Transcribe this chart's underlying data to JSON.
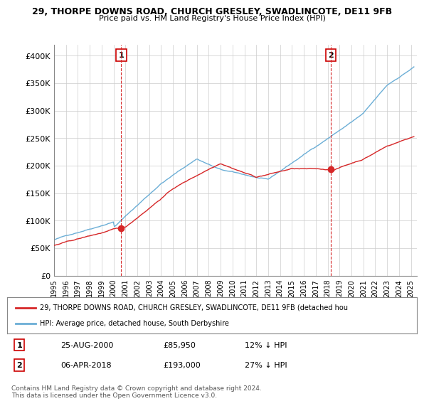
{
  "title": "29, THORPE DOWNS ROAD, CHURCH GRESLEY, SWADLINCOTE, DE11 9FB",
  "subtitle": "Price paid vs. HM Land Registry's House Price Index (HPI)",
  "xlabel": "",
  "ylabel": "",
  "ylim": [
    0,
    420000
  ],
  "yticks": [
    0,
    50000,
    100000,
    150000,
    200000,
    250000,
    300000,
    350000,
    400000
  ],
  "ytick_labels": [
    "£0",
    "£50K",
    "£100K",
    "£150K",
    "£200K",
    "£250K",
    "£300K",
    "£350K",
    "£400K"
  ],
  "xlim_start": 1995.0,
  "xlim_end": 2025.5,
  "marker1_x": 2000.65,
  "marker1_y": 85950,
  "marker1_label": "1",
  "marker1_date": "25-AUG-2000",
  "marker1_price": "£85,950",
  "marker1_hpi": "12% ↓ HPI",
  "marker2_x": 2018.27,
  "marker2_y": 193000,
  "marker2_label": "2",
  "marker2_date": "06-APR-2018",
  "marker2_price": "£193,000",
  "marker2_hpi": "27% ↓ HPI",
  "hpi_color": "#6baed6",
  "property_color": "#d62728",
  "dashed_line_color": "#d62728",
  "legend_property": "29, THORPE DOWNS ROAD, CHURCH GRESLEY, SWADLINCOTE, DE11 9FB (detached hou",
  "legend_hpi": "HPI: Average price, detached house, South Derbyshire",
  "footer": "Contains HM Land Registry data © Crown copyright and database right 2024.\nThis data is licensed under the Open Government Licence v3.0.",
  "background_color": "#ffffff",
  "grid_color": "#cccccc"
}
